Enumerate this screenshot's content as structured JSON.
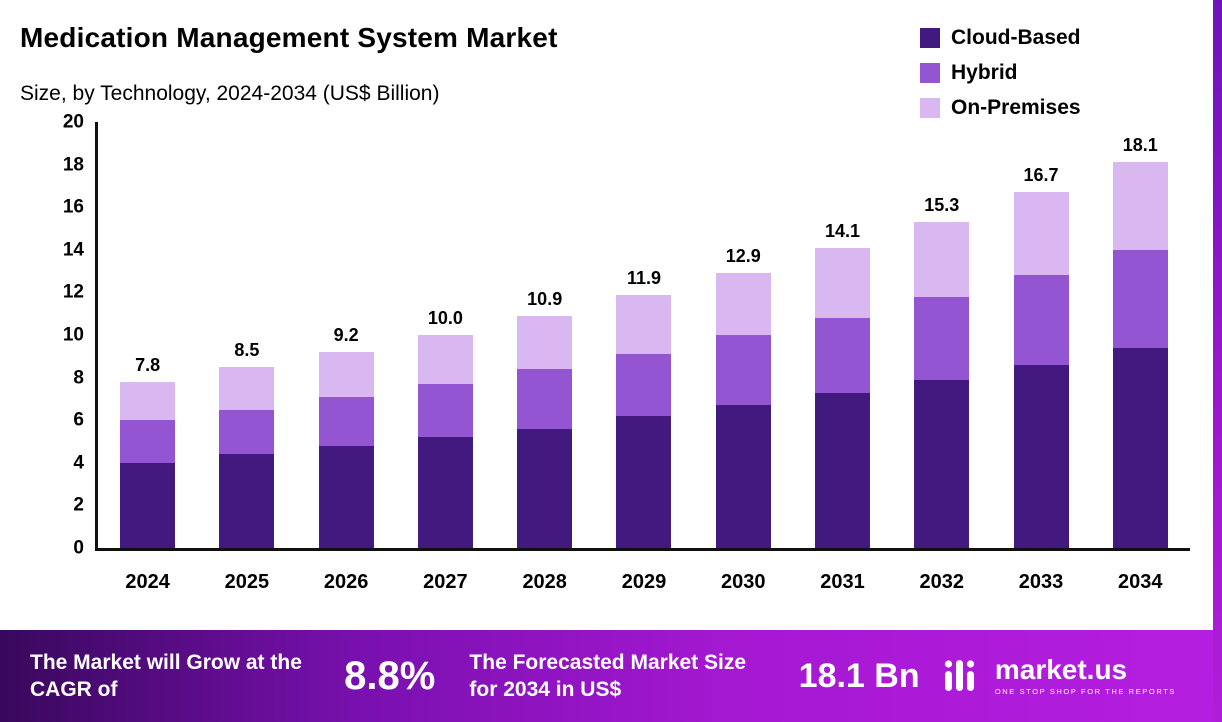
{
  "header": {
    "title": "Medication Management System Market",
    "subtitle": "Size, by Technology, 2024-2034 (US$ Billion)"
  },
  "legend": [
    {
      "label": "Cloud-Based",
      "color": "#41197f"
    },
    {
      "label": "Hybrid",
      "color": "#9455d3"
    },
    {
      "label": "On-Premises",
      "color": "#d9b8f2"
    }
  ],
  "chart_data": {
    "type": "bar",
    "stacked": true,
    "title": "Medication Management System Market",
    "subtitle": "Size, by Technology, 2024-2034 (US$ Billion)",
    "unit": "US$ Billion",
    "categories": [
      "2024",
      "2025",
      "2026",
      "2027",
      "2028",
      "2029",
      "2030",
      "2031",
      "2032",
      "2033",
      "2034"
    ],
    "series": [
      {
        "name": "Cloud-Based",
        "color": "#41197f",
        "values": [
          4.0,
          4.4,
          4.8,
          5.2,
          5.6,
          6.2,
          6.7,
          7.3,
          7.9,
          8.6,
          9.4
        ]
      },
      {
        "name": "Hybrid",
        "color": "#9455d3",
        "values": [
          2.0,
          2.1,
          2.3,
          2.5,
          2.8,
          2.9,
          3.3,
          3.5,
          3.9,
          4.2,
          4.6
        ]
      },
      {
        "name": "On-Premises",
        "color": "#d9b8f2",
        "values": [
          1.8,
          2.0,
          2.1,
          2.3,
          2.5,
          2.8,
          2.9,
          3.3,
          3.5,
          3.9,
          4.1
        ]
      }
    ],
    "totals": [
      "7.8",
      "8.5",
      "9.2",
      "10.0",
      "10.9",
      "11.9",
      "12.9",
      "14.1",
      "15.3",
      "16.7",
      "18.1"
    ],
    "ylim": [
      0,
      20
    ],
    "yticks": [
      "0",
      "2",
      "4",
      "6",
      "8",
      "10",
      "12",
      "14",
      "16",
      "18",
      "20"
    ],
    "grid": false,
    "legend_position": "top-right"
  },
  "footer": {
    "cagr_label": "The Market will Grow at the CAGR of",
    "cagr_value": "8.8%",
    "forecast_label": "The Forecasted Market Size for 2034 in US$",
    "forecast_value": "18.1 Bn",
    "brand": "market.us",
    "brand_tagline": "ONE STOP SHOP FOR THE REPORTS"
  }
}
